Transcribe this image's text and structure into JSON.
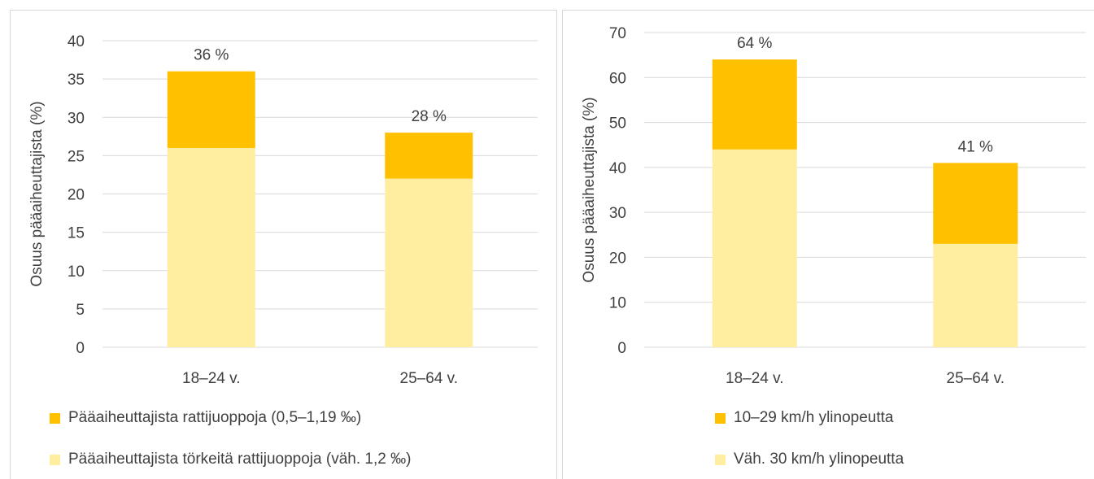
{
  "colors": {
    "dark": "#FFC000",
    "light": "#FFEDA0",
    "grid": "#D9D9D9",
    "text": "#404040"
  },
  "chart_data": [
    {
      "type": "bar",
      "stacked": true,
      "ylabel": "Osuus pääaiheuttajista (%)",
      "ylim": [
        0,
        40
      ],
      "ystep": 5,
      "yticks": [
        "0",
        "5",
        "10",
        "15",
        "20",
        "25",
        "30",
        "35",
        "40"
      ],
      "categories": [
        "18–24 v.",
        "25–64 v."
      ],
      "totals_labels": [
        "36 %",
        "28 %"
      ],
      "series": [
        {
          "name": "Pääaiheuttajista törkeitä rattijuoppoja (väh. 1,2 ‰)",
          "values": [
            26,
            22
          ],
          "color": "#FFEDA0"
        },
        {
          "name": "Pääaiheuttajista rattijuoppoja (0,5–1,19 ‰)",
          "values": [
            10,
            6
          ],
          "color": "#FFC000"
        }
      ],
      "legend": {
        "position": "bottom",
        "items": [
          {
            "label": "Pääaiheuttajista rattijuoppoja (0,5–1,19 ‰)",
            "color": "#FFC000"
          },
          {
            "label": "Pääaiheuttajista törkeitä rattijuoppoja (väh. 1,2 ‰)",
            "color": "#FFEDA0"
          }
        ]
      },
      "grid": true
    },
    {
      "type": "bar",
      "stacked": true,
      "ylabel": "Osuus pääaiheuttajista (%)",
      "ylim": [
        0,
        70
      ],
      "ystep": 10,
      "yticks": [
        "0",
        "10",
        "20",
        "30",
        "40",
        "50",
        "60",
        "70"
      ],
      "categories": [
        "18–24 v.",
        "25–64 v."
      ],
      "totals_labels": [
        "64 %",
        "41 %"
      ],
      "series": [
        {
          "name": "Väh. 30 km/h ylinopeutta",
          "values": [
            44,
            23
          ],
          "color": "#FFEDA0"
        },
        {
          "name": "10–29 km/h ylinopeutta",
          "values": [
            20,
            18
          ],
          "color": "#FFC000"
        }
      ],
      "legend": {
        "position": "bottom",
        "items": [
          {
            "label": "10–29 km/h ylinopeutta",
            "color": "#FFC000"
          },
          {
            "label": "Väh. 30 km/h ylinopeutta",
            "color": "#FFEDA0"
          }
        ]
      },
      "grid": true
    }
  ]
}
